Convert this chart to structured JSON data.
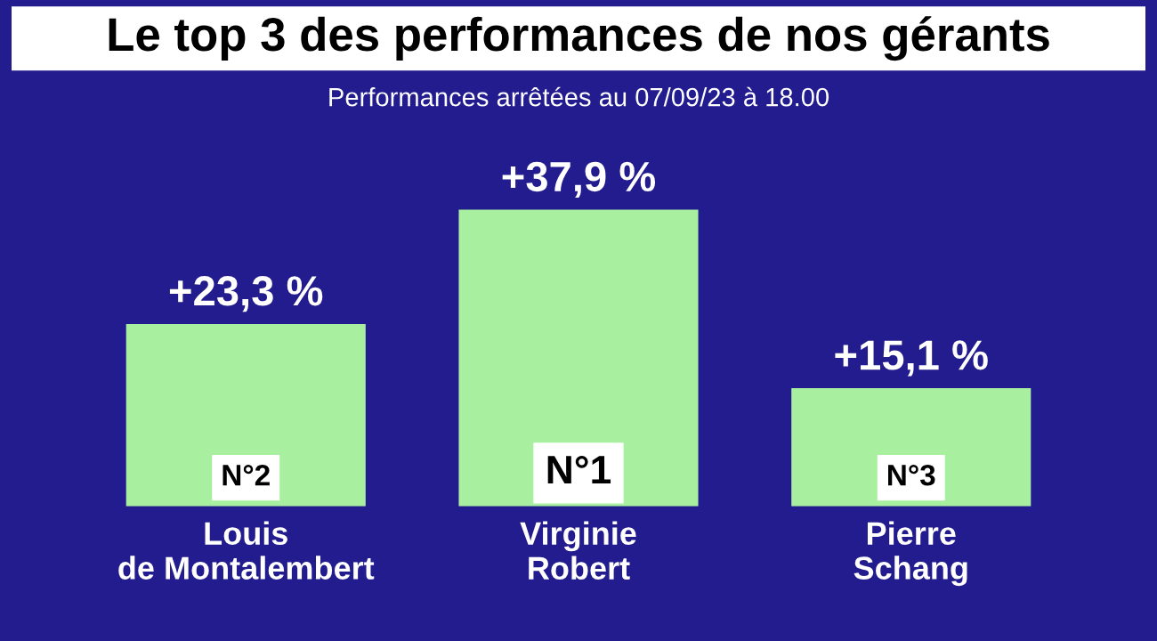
{
  "chart_data": {
    "type": "bar",
    "title": "Le top 3 des performances de nos gérants",
    "subtitle": "Performances arrêtées au 07/09/23 à 18.00",
    "categories": [
      "Louis\nde Montalembert",
      "Virginie\nRobert",
      "Pierre\nSchang"
    ],
    "values": [
      23.3,
      37.9,
      15.1
    ],
    "color": "#a8f0a0",
    "value_labels": [
      "+23,3 %",
      "+37,9 %",
      "+15,1 %"
    ],
    "annotations": [
      "N°2",
      "N°1",
      "N°3"
    ],
    "grid": false,
    "legend": false
  }
}
